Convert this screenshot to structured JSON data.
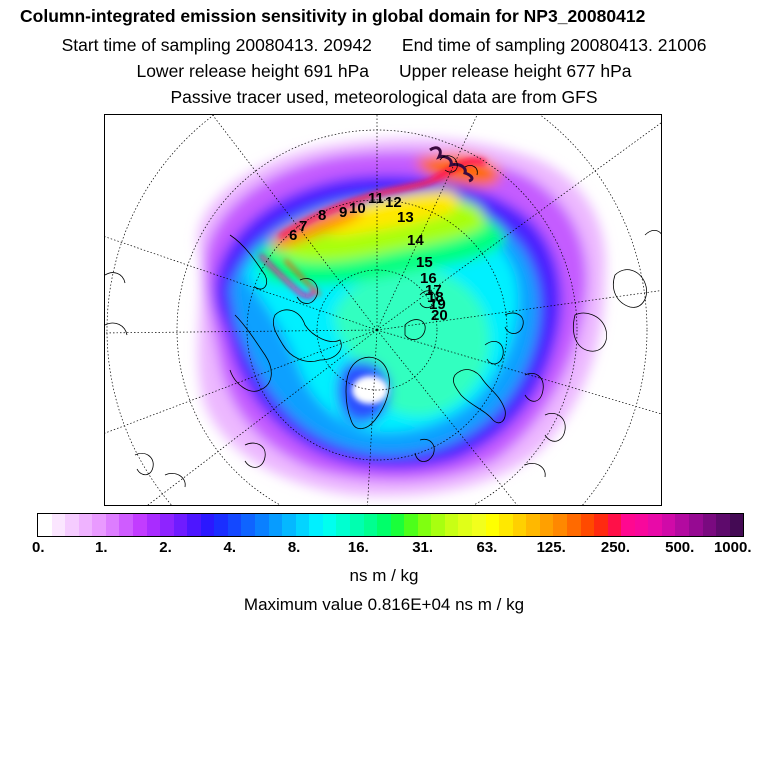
{
  "header": {
    "title": "Column-integrated emission sensitivity in global domain for NP3_20080412",
    "start_label": "Start time of sampling 20080413. 20942",
    "end_label": "End time of sampling 20080413. 21006",
    "lower_label": "Lower release height  691 hPa",
    "upper_label": "Upper release height  677 hPa",
    "tracer_note": "Passive tracer used, meteorological data are from GFS"
  },
  "map": {
    "track_labels": [
      "6",
      "7",
      "8",
      "9",
      "10",
      "11",
      "12",
      "13",
      "14",
      "15",
      "16",
      "17",
      "18",
      "19",
      "20"
    ]
  },
  "colorbar": {
    "ticks": [
      "0.",
      "1.",
      "2.",
      "4.",
      "8.",
      "16.",
      "31.",
      "63.",
      "125.",
      "250.",
      "500.",
      "1000."
    ],
    "colors": [
      "#ffffff",
      "#fbe6ff",
      "#f5ccff",
      "#efb3ff",
      "#e99aff",
      "#dd7dff",
      "#cf5cff",
      "#c23cff",
      "#a92cff",
      "#8e24ff",
      "#6f1cff",
      "#4d16ff",
      "#2b18ff",
      "#1a2eff",
      "#1448ff",
      "#0f64ff",
      "#0a80ff",
      "#079cff",
      "#05b8ff",
      "#03d4ff",
      "#00f0ff",
      "#00ffef",
      "#00ffd0",
      "#00ffb0",
      "#00ff90",
      "#00ff6a",
      "#1aff3a",
      "#4dff1a",
      "#80ff10",
      "#a8ff10",
      "#c8ff14",
      "#e0ff18",
      "#f2ff1c",
      "#ffff00",
      "#ffe800",
      "#ffd000",
      "#ffb800",
      "#ffa000",
      "#ff8800",
      "#ff6a00",
      "#ff4a00",
      "#ff2a10",
      "#ff1048",
      "#ff0890",
      "#f8089c",
      "#e80aa8",
      "#d00aa8",
      "#b30aa0",
      "#960a92",
      "#7a0a80",
      "#5e0a6c",
      "#440a54"
    ]
  },
  "units_label": "ns m / kg",
  "max_value_label": "Maximum value  0.816E+04 ns m / kg"
}
